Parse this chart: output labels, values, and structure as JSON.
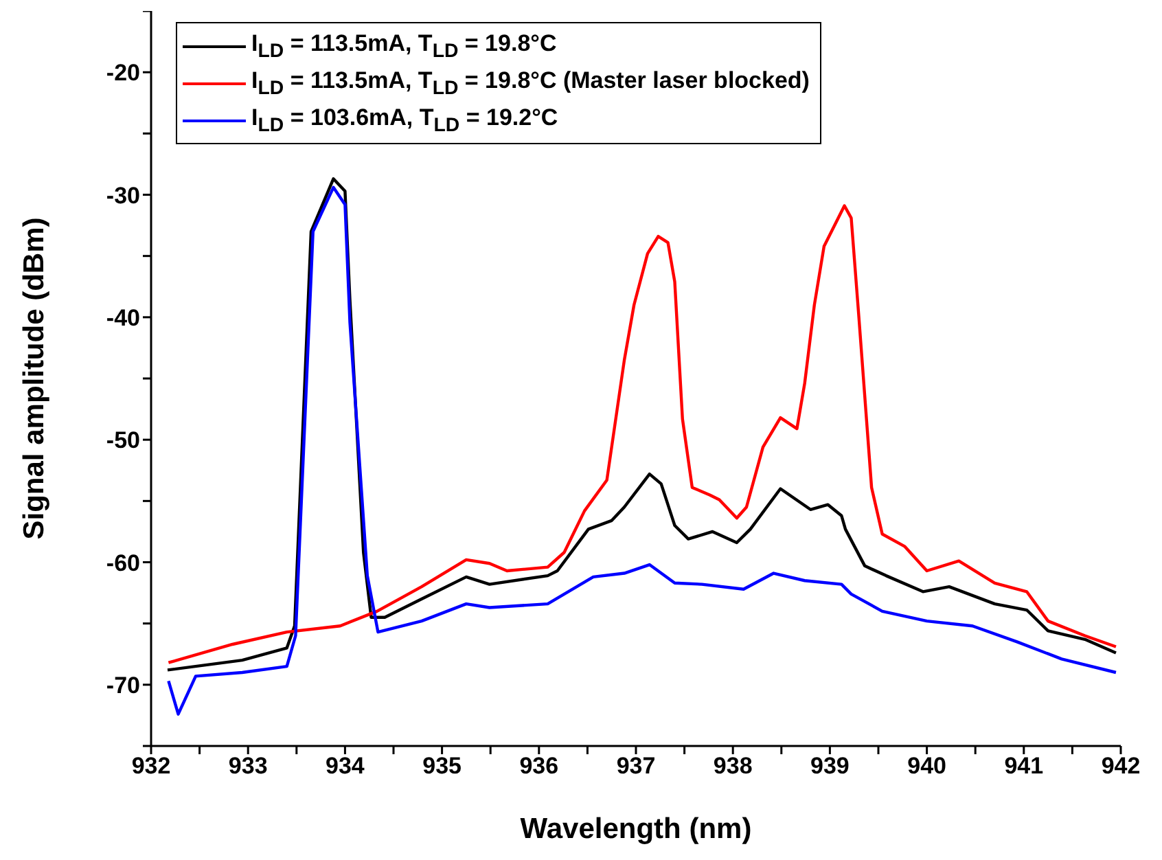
{
  "chart_data": {
    "type": "line",
    "xlabel": "Wavelength (nm)",
    "ylabel": "Signal amplitude (dBm)",
    "xlim": [
      932,
      942
    ],
    "ylim": [
      -75,
      -15
    ],
    "xticks": [
      932,
      {
        "value": 932.5,
        "label": null
      },
      933,
      {
        "value": 933.5,
        "label": null
      },
      934,
      {
        "value": 934.5,
        "label": null
      },
      935,
      {
        "value": 935.5,
        "label": null
      },
      936,
      {
        "value": 936.5,
        "label": null
      },
      937,
      {
        "value": 937.5,
        "label": null
      },
      938,
      {
        "value": 938.5,
        "label": null
      },
      939,
      {
        "value": 939.5,
        "label": null
      },
      940,
      {
        "value": 940.5,
        "label": null
      },
      941,
      {
        "value": 941.5,
        "label": null
      },
      942
    ],
    "yticks": [
      {
        "value": -75,
        "label": null
      },
      -70,
      {
        "value": -65,
        "label": null
      },
      -60,
      {
        "value": -55,
        "label": null
      },
      -50,
      {
        "value": -45,
        "label": null
      },
      -40,
      {
        "value": -35,
        "label": null
      },
      -30,
      {
        "value": -25,
        "label": null
      },
      -20,
      {
        "value": -15,
        "label": null
      }
    ],
    "grid": false,
    "legend": "top left",
    "marker": "none",
    "line_style": "solid",
    "series": [
      {
        "name": "I$_{LD}$ = 113.5mA, T$_{LD}$ = 19.8°C",
        "color": "#000000",
        "x": [
          932.17,
          932.94,
          933.4,
          933.48,
          933.65,
          933.88,
          934.0,
          934.05,
          934.19,
          934.27,
          934.41,
          934.79,
          935.25,
          935.49,
          936.09,
          936.19,
          936.51,
          936.75,
          936.88,
          937.14,
          937.26,
          937.4,
          937.54,
          937.79,
          938.04,
          938.18,
          938.49,
          938.8,
          938.98,
          939.12,
          939.16,
          939.36,
          939.58,
          939.96,
          940.23,
          940.7,
          941.03,
          941.25,
          941.63,
          941.95
        ],
        "values": [
          -68.8,
          -68,
          -67,
          -65.2,
          -33,
          -28.7,
          -29.7,
          -38.5,
          -59.2,
          -64.5,
          -64.5,
          -63,
          -61.2,
          -61.8,
          -61.1,
          -60.7,
          -57.3,
          -56.6,
          -55.5,
          -52.8,
          -53.6,
          -57,
          -58.1,
          -57.5,
          -58.4,
          -57.3,
          -54,
          -55.7,
          -55.3,
          -56.2,
          -57.3,
          -60.3,
          -61.1,
          -62.4,
          -62,
          -63.4,
          -63.9,
          -65.6,
          -66.3,
          -67.4
        ]
      },
      {
        "name": "I$_{LD}$ = 113.5mA, T$_{LD}$ = 19.8°C (Master laser blocked)",
        "color": "#ff0000",
        "x": [
          932.18,
          932.84,
          933.4,
          933.95,
          934.33,
          934.79,
          935.25,
          935.49,
          935.67,
          936.09,
          936.26,
          936.47,
          936.7,
          936.88,
          936.98,
          937.12,
          937.23,
          937.33,
          937.4,
          937.48,
          937.58,
          937.76,
          937.86,
          938.04,
          938.14,
          938.31,
          938.49,
          938.66,
          938.74,
          938.84,
          938.94,
          939.15,
          939.22,
          939.3,
          939.43,
          939.54,
          939.77,
          940.0,
          940.33,
          940.7,
          941.03,
          941.25,
          941.63,
          941.95
        ],
        "values": [
          -68.2,
          -66.7,
          -65.7,
          -65.2,
          -64,
          -62,
          -59.8,
          -60.1,
          -60.7,
          -60.4,
          -59.2,
          -55.8,
          -53.3,
          -43.5,
          -39,
          -34.8,
          -33.4,
          -33.9,
          -37.1,
          -48.3,
          -53.9,
          -54.5,
          -54.9,
          -56.4,
          -55.5,
          -50.6,
          -48.2,
          -49.1,
          -45.4,
          -39,
          -34.2,
          -30.9,
          -31.9,
          -40.1,
          -53.9,
          -57.7,
          -58.7,
          -60.7,
          -59.9,
          -61.7,
          -62.4,
          -64.8,
          -66,
          -66.9
        ]
      },
      {
        "name": "I$_{LD}$ = 103.6mA, T$_{LD}$ = 19.2°C",
        "color": "#0000ff",
        "x": [
          932.18,
          932.28,
          932.46,
          932.94,
          933.4,
          933.49,
          933.67,
          933.88,
          934.0,
          934.05,
          934.23,
          934.34,
          934.79,
          935.25,
          935.49,
          936.09,
          936.56,
          936.88,
          937.14,
          937.4,
          937.68,
          938.11,
          938.42,
          938.74,
          939.12,
          939.22,
          939.54,
          940.0,
          940.47,
          940.93,
          941.39,
          941.95
        ],
        "values": [
          -69.7,
          -72.4,
          -69.3,
          -69,
          -68.5,
          -66,
          -33,
          -29.4,
          -30.8,
          -40.4,
          -61.1,
          -65.7,
          -64.8,
          -63.4,
          -63.7,
          -63.4,
          -61.2,
          -60.9,
          -60.2,
          -61.7,
          -61.8,
          -62.2,
          -60.9,
          -61.5,
          -61.8,
          -62.6,
          -64,
          -64.8,
          -65.2,
          -66.5,
          -67.9,
          -69
        ]
      }
    ]
  }
}
